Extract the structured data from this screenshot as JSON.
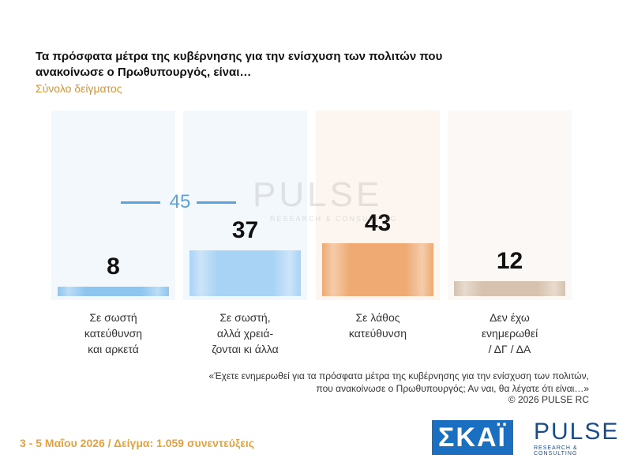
{
  "chart_data": {
    "type": "bar",
    "title": "Τα πρόσφατα μέτρα της κυβέρνησης για την ενίσχυση των πολιτών που ανακοίνωσε ο Πρωθυπουργός, είναι…",
    "subtitle": "Σύνολο δείγματος",
    "categories": [
      "Σε σωστή\nκατεύθυνση\nκαι αρκετά",
      "Σε σωστή,\nαλλά χρειά-\nζονται κι άλλα",
      "Σε λάθος\nκατεύθυνση",
      "Δεν έχω\nενημερωθεί\n/ ΔΓ / ΔΑ"
    ],
    "values": [
      8,
      37,
      43,
      12
    ],
    "colors": [
      "#8ec5ef",
      "#a9d3f5",
      "#eeaa72",
      "#d6c2ae"
    ],
    "backgrounds": [
      "#f3f8fd",
      "#f3f8fd",
      "#fdf6f0",
      "#fbf8f5"
    ],
    "ylim": [
      0,
      100
    ],
    "annotation": "45",
    "note": "«Έχετε ενημερωθεί για τα πρόσφατα μέτρα της κυβέρνησης για την ενίσχυση των πολιτών,\nπου ανακοίνωσε ο Πρωθυπουργός; Αν ναι, θα λέγατε ότι είναι…»",
    "copyright": "©  2026  PULSE RC",
    "footer": "3 - 5  Μαΐου 2026  /  Δείγμα:  1.059 συνεντεύξεις"
  }
}
